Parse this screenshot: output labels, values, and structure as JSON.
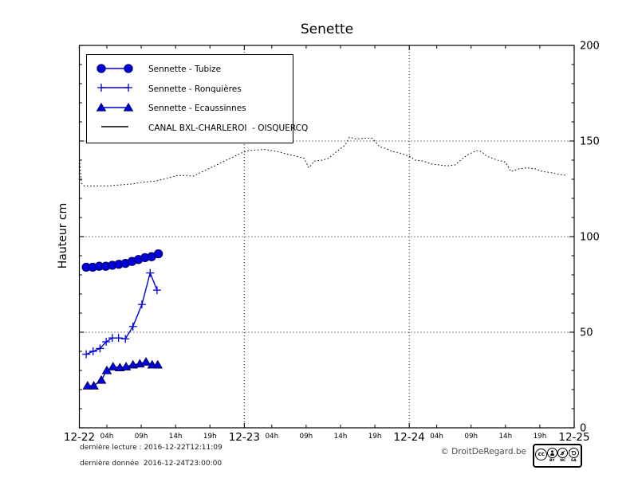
{
  "title": "Senette",
  "ylabel": "Hauteur cm",
  "footer": {
    "line1": "dernière lecture : 2016-12-22T12:11:09",
    "line2": "dernière donnée  2016-12-24T23:00:00",
    "copyright": "© DroitDeRegard.be",
    "cc": {
      "c1": "cc",
      "c2": "",
      "c3": "",
      "c4": "",
      "l2": "BY",
      "l3": "NC",
      "l4": "SA"
    }
  },
  "colors": {
    "series_blue": "#0000dd",
    "series_blue_edge": "#000055",
    "canal_black": "#000000",
    "grid": "#000000"
  },
  "chart_data": {
    "type": "line",
    "title": "Senette",
    "xlabel": "",
    "ylabel": "Hauteur cm",
    "x_unit": "hours from 2016-12-22 00:00",
    "xlim": [
      0,
      72
    ],
    "ylim": [
      0,
      200
    ],
    "grid": {
      "vertical_at": [
        24,
        48
      ],
      "horizontal_at": [
        50,
        100,
        150
      ],
      "style": "dotted"
    },
    "legend_position": "upper left",
    "x_major_ticks": [
      {
        "t": 0,
        "label": "12-22"
      },
      {
        "t": 24,
        "label": "12-23"
      },
      {
        "t": 48,
        "label": "12-24"
      },
      {
        "t": 72,
        "label": "12-25"
      }
    ],
    "x_minor_ticks": [
      {
        "t": 4,
        "label": "04h"
      },
      {
        "t": 9,
        "label": "09h"
      },
      {
        "t": 14,
        "label": "14h"
      },
      {
        "t": 19,
        "label": "19h"
      },
      {
        "t": 28,
        "label": "04h"
      },
      {
        "t": 33,
        "label": "09h"
      },
      {
        "t": 38,
        "label": "14h"
      },
      {
        "t": 43,
        "label": "19h"
      },
      {
        "t": 52,
        "label": "04h"
      },
      {
        "t": 57,
        "label": "09h"
      },
      {
        "t": 62,
        "label": "14h"
      },
      {
        "t": 67,
        "label": "19h"
      }
    ],
    "y_major_ticks": [
      0,
      50,
      100,
      150,
      200
    ],
    "y_minor_step": 10,
    "series": [
      {
        "name": "Sennette - Tubize",
        "marker": "circle",
        "color": "#0000dd",
        "line_style": "solid",
        "points": [
          [
            1,
            84
          ],
          [
            1.95,
            84
          ],
          [
            2.9,
            84.5
          ],
          [
            3.85,
            84.5
          ],
          [
            4.8,
            85
          ],
          [
            5.75,
            85.5
          ],
          [
            6.7,
            86
          ],
          [
            7.65,
            87
          ],
          [
            8.6,
            88
          ],
          [
            9.55,
            89
          ],
          [
            10.5,
            89.5
          ],
          [
            11.5,
            91
          ]
        ]
      },
      {
        "name": "Sennette - Ronquières",
        "marker": "plus",
        "color": "#0000dd",
        "line_style": "solid",
        "points": [
          [
            1,
            38.5
          ],
          [
            2,
            40
          ],
          [
            3,
            41.5
          ],
          [
            3.9,
            45
          ],
          [
            4.8,
            47
          ],
          [
            5.7,
            47
          ],
          [
            6.7,
            46.5
          ],
          [
            7.8,
            53
          ],
          [
            9.1,
            64.5
          ],
          [
            10.3,
            81
          ],
          [
            11.3,
            72
          ]
        ]
      },
      {
        "name": "Sennette - Ecaussinnes",
        "marker": "triangle",
        "color": "#0000dd",
        "line_style": "solid",
        "points": [
          [
            1.2,
            22
          ],
          [
            2.1,
            22
          ],
          [
            3.2,
            25
          ],
          [
            4,
            30
          ],
          [
            4.9,
            32
          ],
          [
            5.9,
            31.5
          ],
          [
            6.8,
            32
          ],
          [
            7.8,
            33
          ],
          [
            8.8,
            33.5
          ],
          [
            9.7,
            34.5
          ],
          [
            10.6,
            33
          ],
          [
            11.4,
            33
          ]
        ]
      },
      {
        "name": "CANAL BXL-CHARLEROI  - OISQUERCQ",
        "marker": "none",
        "color": "#000000",
        "line_style": "dotted",
        "points": [
          [
            0,
            142
          ],
          [
            0.3,
            128
          ],
          [
            0.7,
            126.5
          ],
          [
            2,
            126.5
          ],
          [
            4,
            126.5
          ],
          [
            5.8,
            127
          ],
          [
            7.5,
            127.5
          ],
          [
            9.3,
            128.5
          ],
          [
            11,
            129
          ],
          [
            12.8,
            130.5
          ],
          [
            14.2,
            132
          ],
          [
            15.7,
            132
          ],
          [
            16.5,
            131.5
          ],
          [
            17.6,
            133.5
          ],
          [
            18.8,
            135.5
          ],
          [
            20,
            137.5
          ],
          [
            21.1,
            139.5
          ],
          [
            22.3,
            141.5
          ],
          [
            23.4,
            143.5
          ],
          [
            24.6,
            145
          ],
          [
            25.8,
            145.3
          ],
          [
            26.9,
            145.6
          ],
          [
            28.1,
            145
          ],
          [
            29.3,
            144
          ],
          [
            30.4,
            143
          ],
          [
            31.6,
            142
          ],
          [
            32.7,
            141
          ],
          [
            33.4,
            136
          ],
          [
            34.2,
            139.5
          ],
          [
            35.4,
            140
          ],
          [
            36.3,
            141
          ],
          [
            37.1,
            143.5
          ],
          [
            38,
            146
          ],
          [
            38.7,
            148
          ],
          [
            39.3,
            152
          ],
          [
            40.3,
            151
          ],
          [
            41.4,
            151.5
          ],
          [
            42.6,
            151.5
          ],
          [
            43.7,
            147
          ],
          [
            44.7,
            146
          ],
          [
            45.5,
            144.5
          ],
          [
            46.4,
            144
          ],
          [
            47.2,
            143
          ],
          [
            48,
            142
          ],
          [
            48.9,
            140
          ],
          [
            50,
            139.5
          ],
          [
            51.2,
            138
          ],
          [
            52.3,
            137.5
          ],
          [
            53.5,
            137
          ],
          [
            54.7,
            137.5
          ],
          [
            55.8,
            141
          ],
          [
            56.6,
            143
          ],
          [
            57.8,
            145
          ],
          [
            58.5,
            144.5
          ],
          [
            59.3,
            142
          ],
          [
            60.1,
            141
          ],
          [
            60.8,
            140
          ],
          [
            62,
            139
          ],
          [
            62.8,
            134
          ],
          [
            64,
            135.5
          ],
          [
            65.1,
            136
          ],
          [
            66.3,
            135.5
          ],
          [
            67.4,
            134
          ],
          [
            68.6,
            133.5
          ],
          [
            69.8,
            132.5
          ],
          [
            71,
            132
          ]
        ]
      }
    ]
  }
}
